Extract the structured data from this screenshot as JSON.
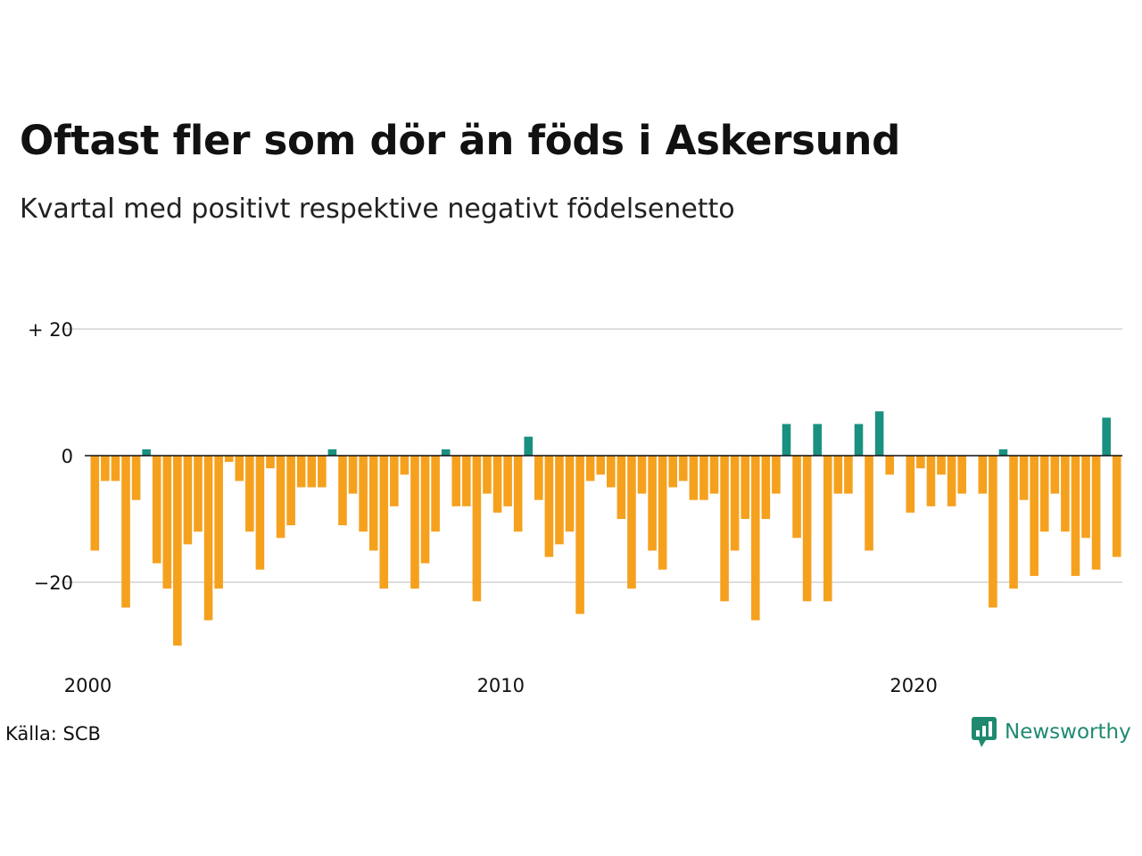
{
  "title": "Oftast fler som dör än föds i Askersund",
  "subtitle": "Kvartal med positivt respektive negativt födelsenetto",
  "source": "Källa: SCB",
  "brand": "Newsworthy",
  "colors": {
    "positive": "#1a9080",
    "negative": "#f5a11e",
    "grid": "#dddddd",
    "zero_line": "#111111",
    "brand": "#1f8a70"
  },
  "chart_data": {
    "type": "bar",
    "x_start": "2000 Q1",
    "x_ticks": [
      "2000",
      "2010",
      "2020"
    ],
    "y_ticks": [
      "+ 20",
      "0",
      "−20"
    ],
    "y_tick_values": [
      20,
      0,
      -20
    ],
    "ylim": [
      -30,
      20
    ],
    "grid": true,
    "values": [
      -15,
      -4,
      -4,
      -24,
      -7,
      1,
      -17,
      -21,
      -30,
      -14,
      -12,
      -26,
      -21,
      -1,
      -4,
      -12,
      -18,
      -2,
      -13,
      -11,
      -5,
      -5,
      -5,
      1,
      -11,
      -6,
      -12,
      -15,
      -21,
      -8,
      -3,
      -21,
      -17,
      -12,
      1,
      -8,
      -8,
      -23,
      -6,
      -9,
      -8,
      -12,
      3,
      -7,
      -16,
      -14,
      -12,
      -25,
      -4,
      -3,
      -5,
      -10,
      -21,
      -6,
      -15,
      -18,
      -5,
      -4,
      -7,
      -7,
      -6,
      -23,
      -15,
      -10,
      -26,
      -10,
      -6,
      5,
      -13,
      -23,
      5,
      -23,
      -6,
      -6,
      5,
      -15,
      7,
      -3,
      0,
      -9,
      -2,
      -8,
      -3,
      -8,
      -6,
      0,
      -6,
      -24,
      1,
      -21,
      -7,
      -19,
      -12,
      -6,
      -12,
      -19,
      -13,
      -18,
      6,
      -16
    ]
  }
}
